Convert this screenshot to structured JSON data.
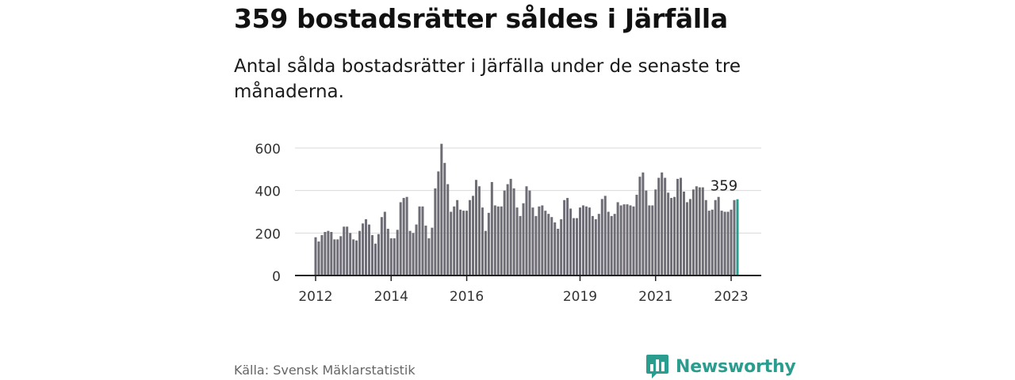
{
  "header": {
    "title": "359 bostadsrätter såldes i Järfälla",
    "subtitle": "Antal sålda bostadsrätter i Järfälla under de senaste tre månaderna."
  },
  "footer": {
    "source": "Källa: Svensk Mäklarstatistik",
    "logo_text": "Newsworthy",
    "logo_icon": "bar-chart-speech-bubble-icon"
  },
  "colors": {
    "bar": "#6e6c74",
    "highlight": "#2a9d8f",
    "grid": "#d9d9d9",
    "axis": "#222222",
    "logo": "#2a9d8f"
  },
  "chart_data": {
    "type": "bar",
    "title": "359 bostadsrätter såldes i Järfälla",
    "xlabel": "",
    "ylabel": "",
    "ylim": [
      0,
      600
    ],
    "yticks": [
      0,
      200,
      400,
      600
    ],
    "grid": true,
    "xticks": [
      {
        "label": "2012",
        "index": 0
      },
      {
        "label": "2014",
        "index": 24
      },
      {
        "label": "2016",
        "index": 48
      },
      {
        "label": "2019",
        "index": 84
      },
      {
        "label": "2021",
        "index": 108
      },
      {
        "label": "2023",
        "index": 132
      }
    ],
    "start": "2012-01",
    "values": [
      180,
      160,
      190,
      205,
      210,
      205,
      170,
      170,
      185,
      230,
      230,
      200,
      170,
      165,
      210,
      245,
      265,
      240,
      190,
      150,
      195,
      275,
      300,
      220,
      175,
      175,
      215,
      345,
      365,
      370,
      210,
      200,
      240,
      325,
      325,
      235,
      175,
      225,
      410,
      490,
      620,
      530,
      430,
      300,
      325,
      355,
      310,
      305,
      305,
      355,
      375,
      450,
      420,
      320,
      210,
      295,
      440,
      330,
      325,
      325,
      400,
      430,
      455,
      410,
      320,
      280,
      340,
      420,
      400,
      320,
      280,
      325,
      330,
      305,
      290,
      275,
      250,
      220,
      265,
      355,
      365,
      315,
      270,
      270,
      320,
      330,
      325,
      320,
      280,
      265,
      290,
      360,
      375,
      300,
      280,
      290,
      345,
      330,
      335,
      335,
      330,
      325,
      380,
      465,
      485,
      400,
      330,
      330,
      405,
      460,
      485,
      460,
      390,
      365,
      370,
      455,
      460,
      395,
      345,
      360,
      405,
      420,
      415,
      415,
      355,
      305,
      310,
      355,
      370,
      305,
      300,
      300,
      310,
      355,
      359
    ],
    "highlight_index": 134,
    "annotation": "359"
  }
}
